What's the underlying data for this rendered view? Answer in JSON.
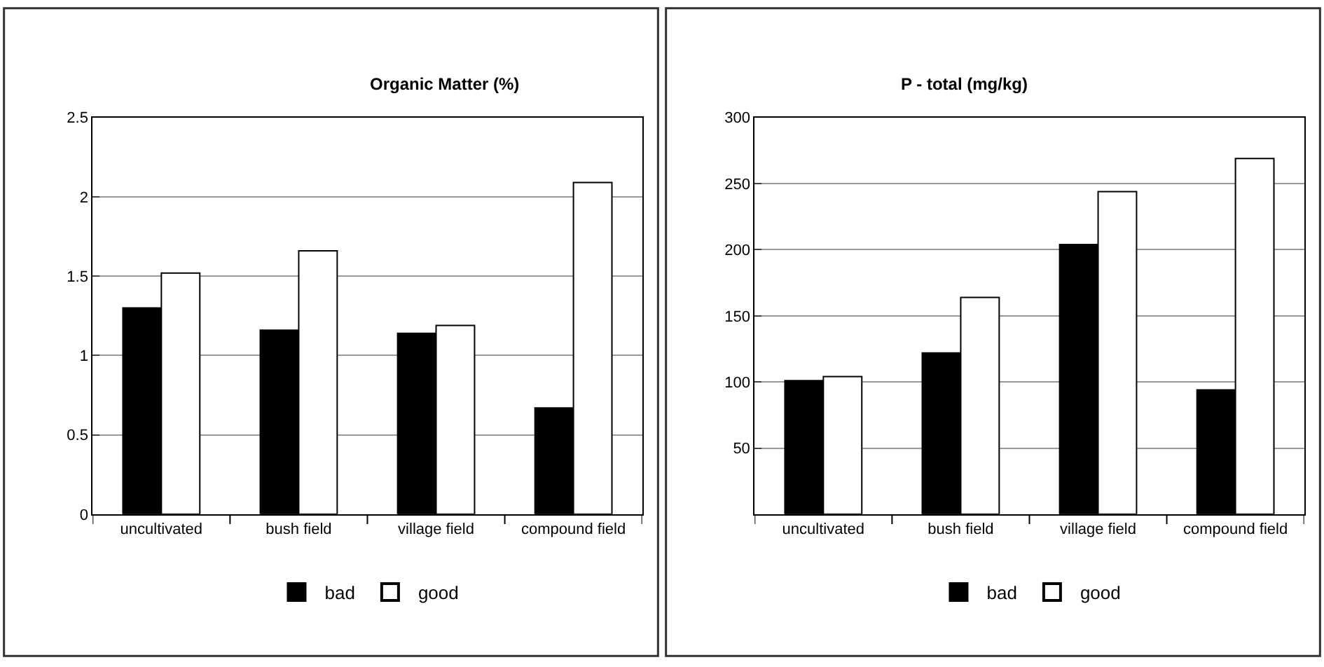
{
  "chart_data": [
    {
      "type": "bar",
      "title": "Organic Matter (%)",
      "categories": [
        "uncultivated",
        "bush field",
        "village field",
        "compound field"
      ],
      "series": [
        {
          "name": "bad",
          "color": "#000000",
          "values": [
            1.3,
            1.16,
            1.14,
            0.67
          ]
        },
        {
          "name": "good",
          "color": "#ffffff",
          "values": [
            1.52,
            1.66,
            1.19,
            2.09
          ]
        }
      ],
      "ylim": [
        0,
        2.5
      ],
      "yticks": [
        0,
        0.5,
        1,
        1.5,
        2,
        2.5
      ],
      "grid": "y",
      "legend": "bottom"
    },
    {
      "type": "bar",
      "title": "P - total (mg/kg)",
      "categories": [
        "uncultivated",
        "bush field",
        "village field",
        "compound field"
      ],
      "series": [
        {
          "name": "bad",
          "color": "#000000",
          "values": [
            101,
            122,
            204,
            94
          ]
        },
        {
          "name": "good",
          "color": "#ffffff",
          "values": [
            104,
            164,
            244,
            269
          ]
        }
      ],
      "ylim": [
        0,
        300
      ],
      "yticks": [
        {
          "value": 0,
          "label": null
        },
        50,
        100,
        150,
        200,
        250,
        300
      ],
      "grid": "y",
      "legend": "bottom"
    }
  ]
}
